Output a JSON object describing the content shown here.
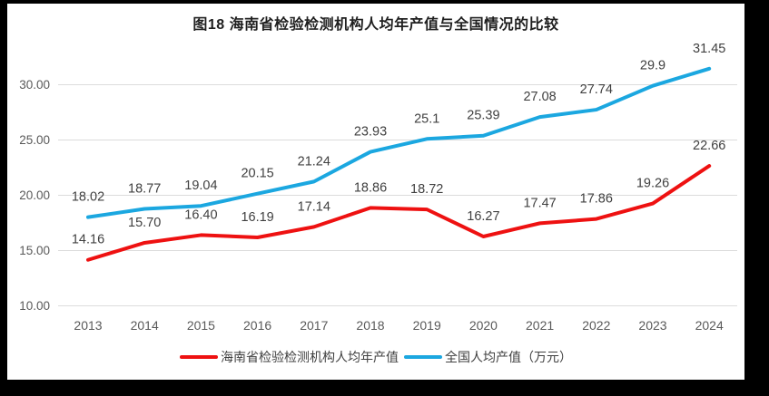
{
  "window": {
    "frame_color": "#000000",
    "panel_color": "#ffffff"
  },
  "chart_data": {
    "type": "line",
    "title": "图18  海南省检验检测机构人均年产值与全国情况的比较",
    "categories": [
      "2013",
      "2014",
      "2015",
      "2016",
      "2017",
      "2018",
      "2019",
      "2020",
      "2021",
      "2022",
      "2023",
      "2024"
    ],
    "series": [
      {
        "name": "海南省检验检测机构人均年产值",
        "color": "#ee1111",
        "values": [
          14.16,
          15.7,
          16.4,
          16.19,
          17.14,
          18.86,
          18.72,
          16.27,
          17.47,
          17.86,
          19.26,
          22.66
        ],
        "labels": [
          "14.16",
          "15.70",
          "16.40",
          "16.19",
          "17.14",
          "18.86",
          "18.72",
          "16.27",
          "17.47",
          "17.86",
          "19.26",
          "22.66"
        ]
      },
      {
        "name": "全国人均产值（万元）",
        "color": "#1ba7e0",
        "values": [
          18.02,
          18.77,
          19.04,
          20.15,
          21.24,
          23.93,
          25.1,
          25.39,
          27.08,
          27.74,
          29.9,
          31.45
        ],
        "labels": [
          "18.02",
          "18.77",
          "19.04",
          "20.15",
          "21.24",
          "23.93",
          "25.1",
          "25.39",
          "27.08",
          "27.74",
          "29.9",
          "31.45"
        ]
      }
    ],
    "xlabel": "",
    "ylabel": "",
    "y_axis": {
      "range": [
        10,
        32
      ],
      "ticks": [
        {
          "value": 10,
          "label": "10.00"
        },
        {
          "value": 15,
          "label": "15.00"
        },
        {
          "value": 20,
          "label": "20.00"
        },
        {
          "value": 25,
          "label": "25.00"
        },
        {
          "value": 30,
          "label": "30.00"
        }
      ]
    },
    "grid": true,
    "legend_position": "bottom",
    "style": {
      "grid_color": "#dcdcdc",
      "axis_text_color": "#595959",
      "data_label_color": "#404040",
      "line_width": 4
    }
  }
}
